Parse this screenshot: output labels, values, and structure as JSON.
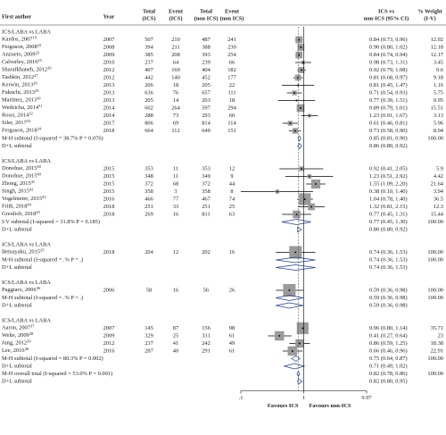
{
  "chart_data": {
    "type": "forest",
    "x_scale": "log",
    "xlim": [
      0.1,
      9.97
    ],
    "xticks": [
      {
        "value": 0.1,
        "label": ".1"
      },
      1,
      9.97
    ],
    "favours": [
      "Favours ICS",
      "Favours non-ICS"
    ],
    "headers": [
      [
        "First author"
      ],
      [
        "Year"
      ],
      [
        "Total",
        "(ICS)"
      ],
      [
        "Event",
        "(ICS)"
      ],
      [
        "Total",
        "(non ICS)"
      ],
      [
        "Event",
        "(non ICS)"
      ],
      [
        "ICS vs",
        "non-ICS (95% CI)"
      ],
      [
        "% Weight",
        "(I-V)"
      ]
    ],
    "groups": [
      {
        "title": "ICS/LABA vs LABA",
        "studies": [
          {
            "author": "Kardos, 2007",
            "ref": "19",
            "year": "2007",
            "total_ics": 507,
            "event_ics": 210,
            "total_non": 487,
            "event_non": 241,
            "es": 0.84,
            "lo": 0.73,
            "hi": 0.96,
            "ci_label": "0.84 (0.73, 0.96)",
            "weight": 12.92
          },
          {
            "author": "Ferguson, 2008",
            "ref": "22",
            "year": "2008",
            "total_ics": 394,
            "event_ics": 211,
            "total_non": 388,
            "event_non": 230,
            "es": 0.9,
            "lo": 0.8,
            "hi": 1.02,
            "ci_label": "0.90 (0.80, 1.02)",
            "weight": 12.18
          },
          {
            "author": "Anzueto, 2009",
            "ref": "23",
            "year": "2009",
            "total_ics": 385,
            "event_ics": 208,
            "total_non": 393,
            "event_non": 254,
            "es": 0.84,
            "lo": 0.74,
            "hi": 0.94,
            "ci_label": "0.84 (0.74, 0.94)",
            "weight": 12.17
          },
          {
            "author": "Calverley, 2010",
            "ref": "25",
            "year": "2010",
            "total_ics": 237,
            "event_ics": 64,
            "total_non": 239,
            "event_non": 66,
            "es": 0.98,
            "lo": 0.73,
            "hi": 1.31,
            "ci_label": "0.98 (0.73, 1.31)",
            "weight": 3.45
          },
          {
            "author": "Sharafkhaneh, 2012",
            "ref": "26",
            "year": "2012",
            "total_ics": 407,
            "event_ics": 169,
            "total_non": 404,
            "event_non": 182,
            "es": 0.92,
            "lo": 0.79,
            "hi": 1.08,
            "ci_label": "0.92 (0.79, 1.08)",
            "weight": 9.6
          },
          {
            "author": "Tashkin, 2012",
            "ref": "27",
            "year": "2012",
            "total_ics": 442,
            "event_ics": 140,
            "total_non": 452,
            "event_non": 177,
            "es": 0.81,
            "lo": 0.68,
            "hi": 0.97,
            "ci_label": "0.81 (0.68, 0.97)",
            "weight": 9.18
          },
          {
            "author": "Kerwin, 2013",
            "ref": "28",
            "year": "2013",
            "total_ics": 206,
            "event_ics": 18,
            "total_non": 205,
            "event_non": 22,
            "es": 0.81,
            "lo": 0.45,
            "hi": 1.47,
            "ci_label": "0.81 (0.45, 1.47)",
            "weight": 1.16
          },
          {
            "author": "Fukuchi, 2013",
            "ref": "29",
            "year": "2013",
            "total_ics": 636,
            "event_ics": 76,
            "total_non": 657,
            "event_non": 111,
            "es": 0.71,
            "lo": 0.54,
            "hi": 0.93,
            "ci_label": "0.71 (0.54, 0.93)",
            "weight": 5.75
          },
          {
            "author": "Martinez, 2013",
            "ref": "30",
            "year": "2013",
            "total_ics": 205,
            "event_ics": 14,
            "total_non": 203,
            "event_non": 18,
            "es": 0.77,
            "lo": 0.39,
            "hi": 1.51,
            "ci_label": "0.77 (0.39, 1.51)",
            "weight": 0.95
          },
          {
            "author": "Wedzicha, 2014",
            "ref": "31",
            "year": "2014",
            "total_ics": 602,
            "event_ics": 264,
            "total_non": 597,
            "event_non": 294,
            "es": 0.89,
            "lo": 0.79,
            "hi": 1.01,
            "ci_label": "0.89 (0.79, 1.01)",
            "weight": 15.51
          },
          {
            "author": "Rossi, 2014",
            "ref": "32",
            "year": "2014",
            "total_ics": 288,
            "event_ics": 73,
            "total_non": 293,
            "event_non": 60,
            "es": 1.23,
            "lo": 0.91,
            "hi": 1.67,
            "ci_label": "1.23 (0.91, 1.67)",
            "weight": 3.13
          },
          {
            "author": "Siler, 2017",
            "ref": "33",
            "year": "2017",
            "total_ics": 806,
            "event_ics": 69,
            "total_non": 814,
            "event_non": 114,
            "es": 0.61,
            "lo": 0.46,
            "hi": 0.81,
            "ci_label": "0.61 (0.46, 0.81)",
            "weight": 5.96
          },
          {
            "author": "Ferguson, 2018",
            "ref": "34",
            "year": "2018",
            "total_ics": 664,
            "event_ics": 112,
            "total_non": 649,
            "event_non": 151,
            "es": 0.73,
            "lo": 0.58,
            "hi": 0.9,
            "ci_label": "0.73 (0.58, 0.90)",
            "weight": 8.04
          }
        ],
        "summaries": [
          {
            "label": "M-H subtotal (I-squared = 38.7% P = 0.076)",
            "es": 0.85,
            "lo": 0.81,
            "hi": 0.9,
            "ci_label": "0.85 (0.81, 0.90)",
            "weight_label": "100.00"
          },
          {
            "label": "D+L subtotal",
            "es": 0.86,
            "lo": 0.8,
            "hi": 0.92,
            "ci_label": "0.86 (0.80, 0.92)"
          }
        ]
      },
      {
        "title": "ICS/LABA vs LABA",
        "studies": [
          {
            "author": "Donohue, 2015",
            "ref": "40",
            "year": "2015",
            "total_ics": 353,
            "event_ics": 11,
            "total_non": 353,
            "event_non": 12,
            "es": 0.92,
            "lo": 0.41,
            "hi": 2.05,
            "ci_label": "0.92 (0.41, 2.05)",
            "weight": 5.9
          },
          {
            "author": "Donohue, 2015",
            "ref": "40",
            "year": "2015",
            "total_ics": 348,
            "event_ics": 11,
            "total_non": 349,
            "event_non": 9,
            "es": 1.23,
            "lo": 0.51,
            "hi": 2.92,
            "ci_label": "1.23 (0.51, 2.92)",
            "weight": 4.42
          },
          {
            "author": "Zhong, 2015",
            "ref": "41",
            "year": "2015",
            "total_ics": 372,
            "event_ics": 68,
            "total_non": 372,
            "event_non": 44,
            "es": 1.55,
            "lo": 1.09,
            "hi": 2.2,
            "ci_label": "1.55 (1.09, 2.20)",
            "weight": 21.64
          },
          {
            "author": "Singh, 2015",
            "ref": "42",
            "year": "2015",
            "total_ics": 358,
            "event_ics": 3,
            "total_non": 358,
            "event_non": 8,
            "es": 0.38,
            "lo": 0.1,
            "hi": 1.4,
            "ci_label": "0.38 (0.10, 1.40)",
            "weight": 3.94
          },
          {
            "author": "Vogelmeier, 2015",
            "ref": "43",
            "year": "2016",
            "total_ics": 466,
            "event_ics": 77,
            "total_non": 467,
            "event_non": 74,
            "es": 1.04,
            "lo": 0.78,
            "hi": 1.4,
            "ci_label": "1.04 (0.78, 1.40)",
            "weight": 36.5
          },
          {
            "author": "Frith, 2018",
            "ref": "44",
            "year": "2018",
            "total_ics": 251,
            "event_ics": 33,
            "total_non": 251,
            "event_non": 25,
            "es": 1.32,
            "lo": 0.81,
            "hi": 2.15,
            "ci_label": "1.32 (0.81, 2.15)",
            "weight": 12.3
          },
          {
            "author": "Greulich, 2018",
            "ref": "45",
            "year": "2018",
            "total_ics": 269,
            "event_ics": 16,
            "total_non": 811,
            "event_non": 63,
            "es": 0.77,
            "lo": 0.45,
            "hi": 1.31,
            "ci_label": "0.77 (0.45, 1.31)",
            "weight": 15.44
          }
        ],
        "summaries": [
          {
            "label": "I-V subtotal (I-squared = 31.8% P = 0.185)",
            "es": 0.77,
            "lo": 0.45,
            "hi": 1.3,
            "ci_label": "0.77 (0.45, 1.30)",
            "weight_label": "100.00"
          },
          {
            "label": "D+L subtotal",
            "es": 0.8,
            "lo": 0.8,
            "hi": 0.92,
            "ci_label": "0.80 (0.80, 0.92)"
          }
        ]
      },
      {
        "title": "ICS/LABA vs LABA",
        "studies": [
          {
            "author": "Betsuyaku, 2015",
            "ref": "35",
            "year": "2018",
            "total_ics": 204,
            "event_ics": 12,
            "total_non": 202,
            "event_non": 16,
            "es": 0.74,
            "lo": 0.36,
            "hi": 1.53,
            "ci_label": "0.74 (0.36, 1.53)",
            "weight": 100,
            "weight_label": "100.00"
          }
        ],
        "summaries": [
          {
            "label": "M-H subtotal (I-squared = .% P = .)",
            "es": 0.74,
            "lo": 0.36,
            "hi": 1.53,
            "ci_label": "0.74 (0.36, 1.53)",
            "weight_label": "100.00"
          },
          {
            "label": "D+L subtotal",
            "es": 0.74,
            "lo": 0.36,
            "hi": 1.53,
            "ci_label": "0.74 (0.36, 1.53)"
          }
        ]
      },
      {
        "title": "ICS/LABA vs LABA",
        "studies": [
          {
            "author": "Paggiaro, 2006",
            "ref": "36",
            "year": "2006",
            "total_ics": 58,
            "event_ics": 16,
            "total_non": 56,
            "event_non": 26,
            "es": 0.59,
            "lo": 0.36,
            "hi": 0.98,
            "ci_label": "0.59 (0.36, 0.98)",
            "weight": 100,
            "weight_label": "100.00"
          }
        ],
        "summaries": [
          {
            "label": "M-H subtotal (I-squared = .% P = .)",
            "es": 0.59,
            "lo": 0.36,
            "hi": 0.98,
            "ci_label": "0.59 (0.36, 0.98)",
            "weight_label": "100.00"
          },
          {
            "label": "D+L subtotal",
            "es": 0.59,
            "lo": 0.36,
            "hi": 0.98,
            "ci_label": "0.59 (0.36, 0.98)"
          }
        ]
      },
      {
        "title": "ICS/LABA vs LABA",
        "studies": [
          {
            "author": "Aaron, 2007",
            "ref": "37",
            "year": "2007",
            "total_ics": 145,
            "event_ics": 87,
            "total_non": 156,
            "event_non": 98,
            "es": 0.96,
            "lo": 0.8,
            "hi": 1.14,
            "ci_label": "0.96 (0.80, 1.14)",
            "weight": 35.71
          },
          {
            "author": "Welte, 2009",
            "ref": "38",
            "year": "2009",
            "total_ics": 329,
            "event_ics": 25,
            "total_non": 331,
            "event_non": 61,
            "es": 0.41,
            "lo": 0.27,
            "hi": 0.64,
            "ci_label": "0.41 (0.27, 0.64)",
            "weight": 23
          },
          {
            "author": "Jung, 2012",
            "ref": "39",
            "year": "2012",
            "total_ics": 237,
            "event_ics": 41,
            "total_non": 242,
            "event_non": 49,
            "es": 0.86,
            "lo": 0.59,
            "hi": 1.25,
            "ci_label": "0.86 (0.59, 1.25)",
            "weight": 18.38
          },
          {
            "author": "Lee, 2016",
            "ref": "46",
            "year": "2016",
            "total_ics": 287,
            "event_ics": 40,
            "total_non": 291,
            "event_non": 61,
            "es": 0.66,
            "lo": 0.46,
            "hi": 0.96,
            "ci_label": "0.66 (0.46, 0.96)",
            "weight": 22.91
          }
        ],
        "summaries": [
          {
            "label": "M-H subtotal (I-squared = 80.3% P = 0.002)",
            "es": 0.75,
            "lo": 0.64,
            "hi": 0.87,
            "ci_label": "0.75 (0.64, 0.87)",
            "weight_label": "100.00"
          },
          {
            "label": "D+L subtotal",
            "es": 0.71,
            "lo": 0.49,
            "hi": 1.02,
            "ci_label": "0.71 (0.49, 1.02)"
          }
        ]
      }
    ],
    "overall": [
      {
        "label": "M-H overall total (I-squared = 53.0% P = 0.001)",
        "es": 0.82,
        "lo": 0.78,
        "hi": 0.86,
        "ci_label": "0.82 (0.78, 0.86)",
        "weight_label": "100.00"
      },
      {
        "label": "D+L subtotal",
        "es": 0.82,
        "lo": 0.8,
        "hi": 0.95,
        "ci_label": "0.82 (0.80, 0.95)"
      }
    ]
  }
}
